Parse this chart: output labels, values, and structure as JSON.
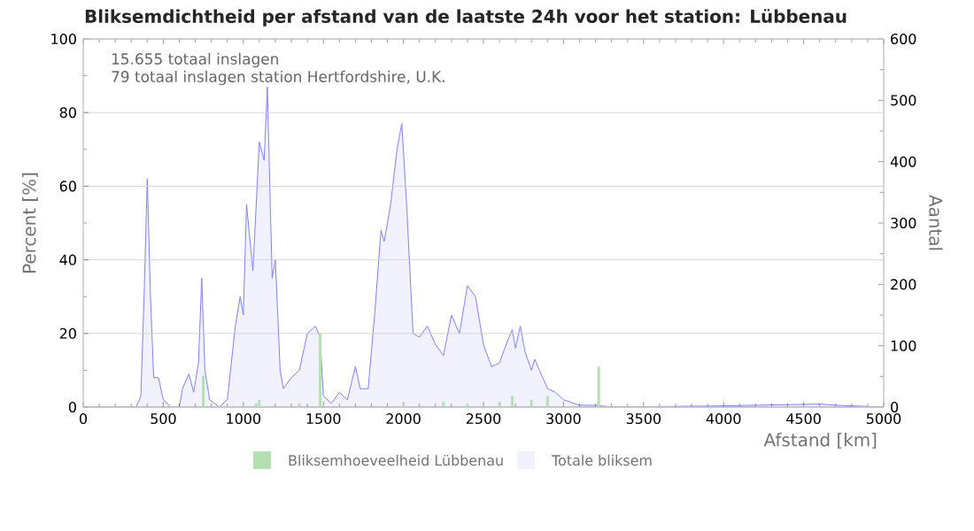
{
  "chart_data": {
    "type": "bar",
    "title": "Bliksemdichtheid per afstand van de laatste 24h voor het station: Lübbenau",
    "xlabel": "Afstand   [km]",
    "ylabel": "Percent   [%]",
    "y2label": "Aantal",
    "annotations": [
      "15.655 totaal inslagen",
      "79 totaal inslagen station Hertfordshire, U.K."
    ],
    "xlim": [
      0,
      5000
    ],
    "xticks": [
      0,
      500,
      1000,
      1500,
      2000,
      2500,
      3000,
      3500,
      4000,
      4500,
      5000
    ],
    "ylim": [
      0,
      100
    ],
    "yticks": [
      0,
      20,
      40,
      60,
      80,
      100
    ],
    "y2lim": [
      0,
      600
    ],
    "y2ticks": [
      0,
      100,
      200,
      300,
      400,
      500,
      600
    ],
    "grid": "y",
    "legend": "bottom",
    "series": [
      {
        "name": "Bliksemhoeveelheid Lübbenau",
        "color": "#b3dfb3",
        "x": [
          750,
          1080,
          1100,
          1350,
          1480,
          2000,
          2250,
          2400,
          2600,
          2680,
          2800,
          2900,
          3220
        ],
        "values": [
          8.5,
          1,
          2,
          1,
          20,
          1,
          1.5,
          1,
          1.5,
          3,
          2,
          3,
          11
        ]
      },
      {
        "name": "Totale bliksem",
        "type": "area",
        "axis": "y2",
        "color": "#8080ff",
        "x": [
          0,
          300,
          330,
          360,
          380,
          400,
          420,
          440,
          470,
          500,
          550,
          600,
          620,
          660,
          690,
          720,
          740,
          760,
          790,
          850,
          900,
          950,
          980,
          1000,
          1020,
          1060,
          1100,
          1130,
          1150,
          1180,
          1200,
          1230,
          1250,
          1300,
          1350,
          1400,
          1450,
          1480,
          1500,
          1550,
          1600,
          1650,
          1700,
          1730,
          1780,
          1820,
          1860,
          1880,
          1920,
          1960,
          1990,
          2020,
          2060,
          2100,
          2150,
          2200,
          2250,
          2300,
          2350,
          2400,
          2450,
          2500,
          2550,
          2600,
          2650,
          2680,
          2700,
          2730,
          2760,
          2800,
          2820,
          2850,
          2900,
          2950,
          3000,
          3100,
          3200,
          3300,
          4000,
          4600,
          4700,
          5000
        ],
        "values": [
          0,
          0,
          0,
          18,
          180,
          372,
          180,
          48,
          48,
          12,
          0,
          0,
          30,
          54,
          24,
          72,
          210,
          60,
          12,
          0,
          12,
          132,
          180,
          150,
          330,
          222,
          432,
          402,
          522,
          210,
          240,
          60,
          30,
          48,
          60,
          120,
          132,
          114,
          18,
          6,
          24,
          12,
          66,
          30,
          30,
          150,
          288,
          270,
          330,
          420,
          462,
          330,
          120,
          114,
          132,
          102,
          84,
          150,
          120,
          198,
          180,
          102,
          66,
          72,
          108,
          126,
          96,
          132,
          90,
          60,
          78,
          60,
          30,
          24,
          12,
          3,
          3,
          0,
          2,
          5,
          3,
          0
        ]
      }
    ]
  }
}
